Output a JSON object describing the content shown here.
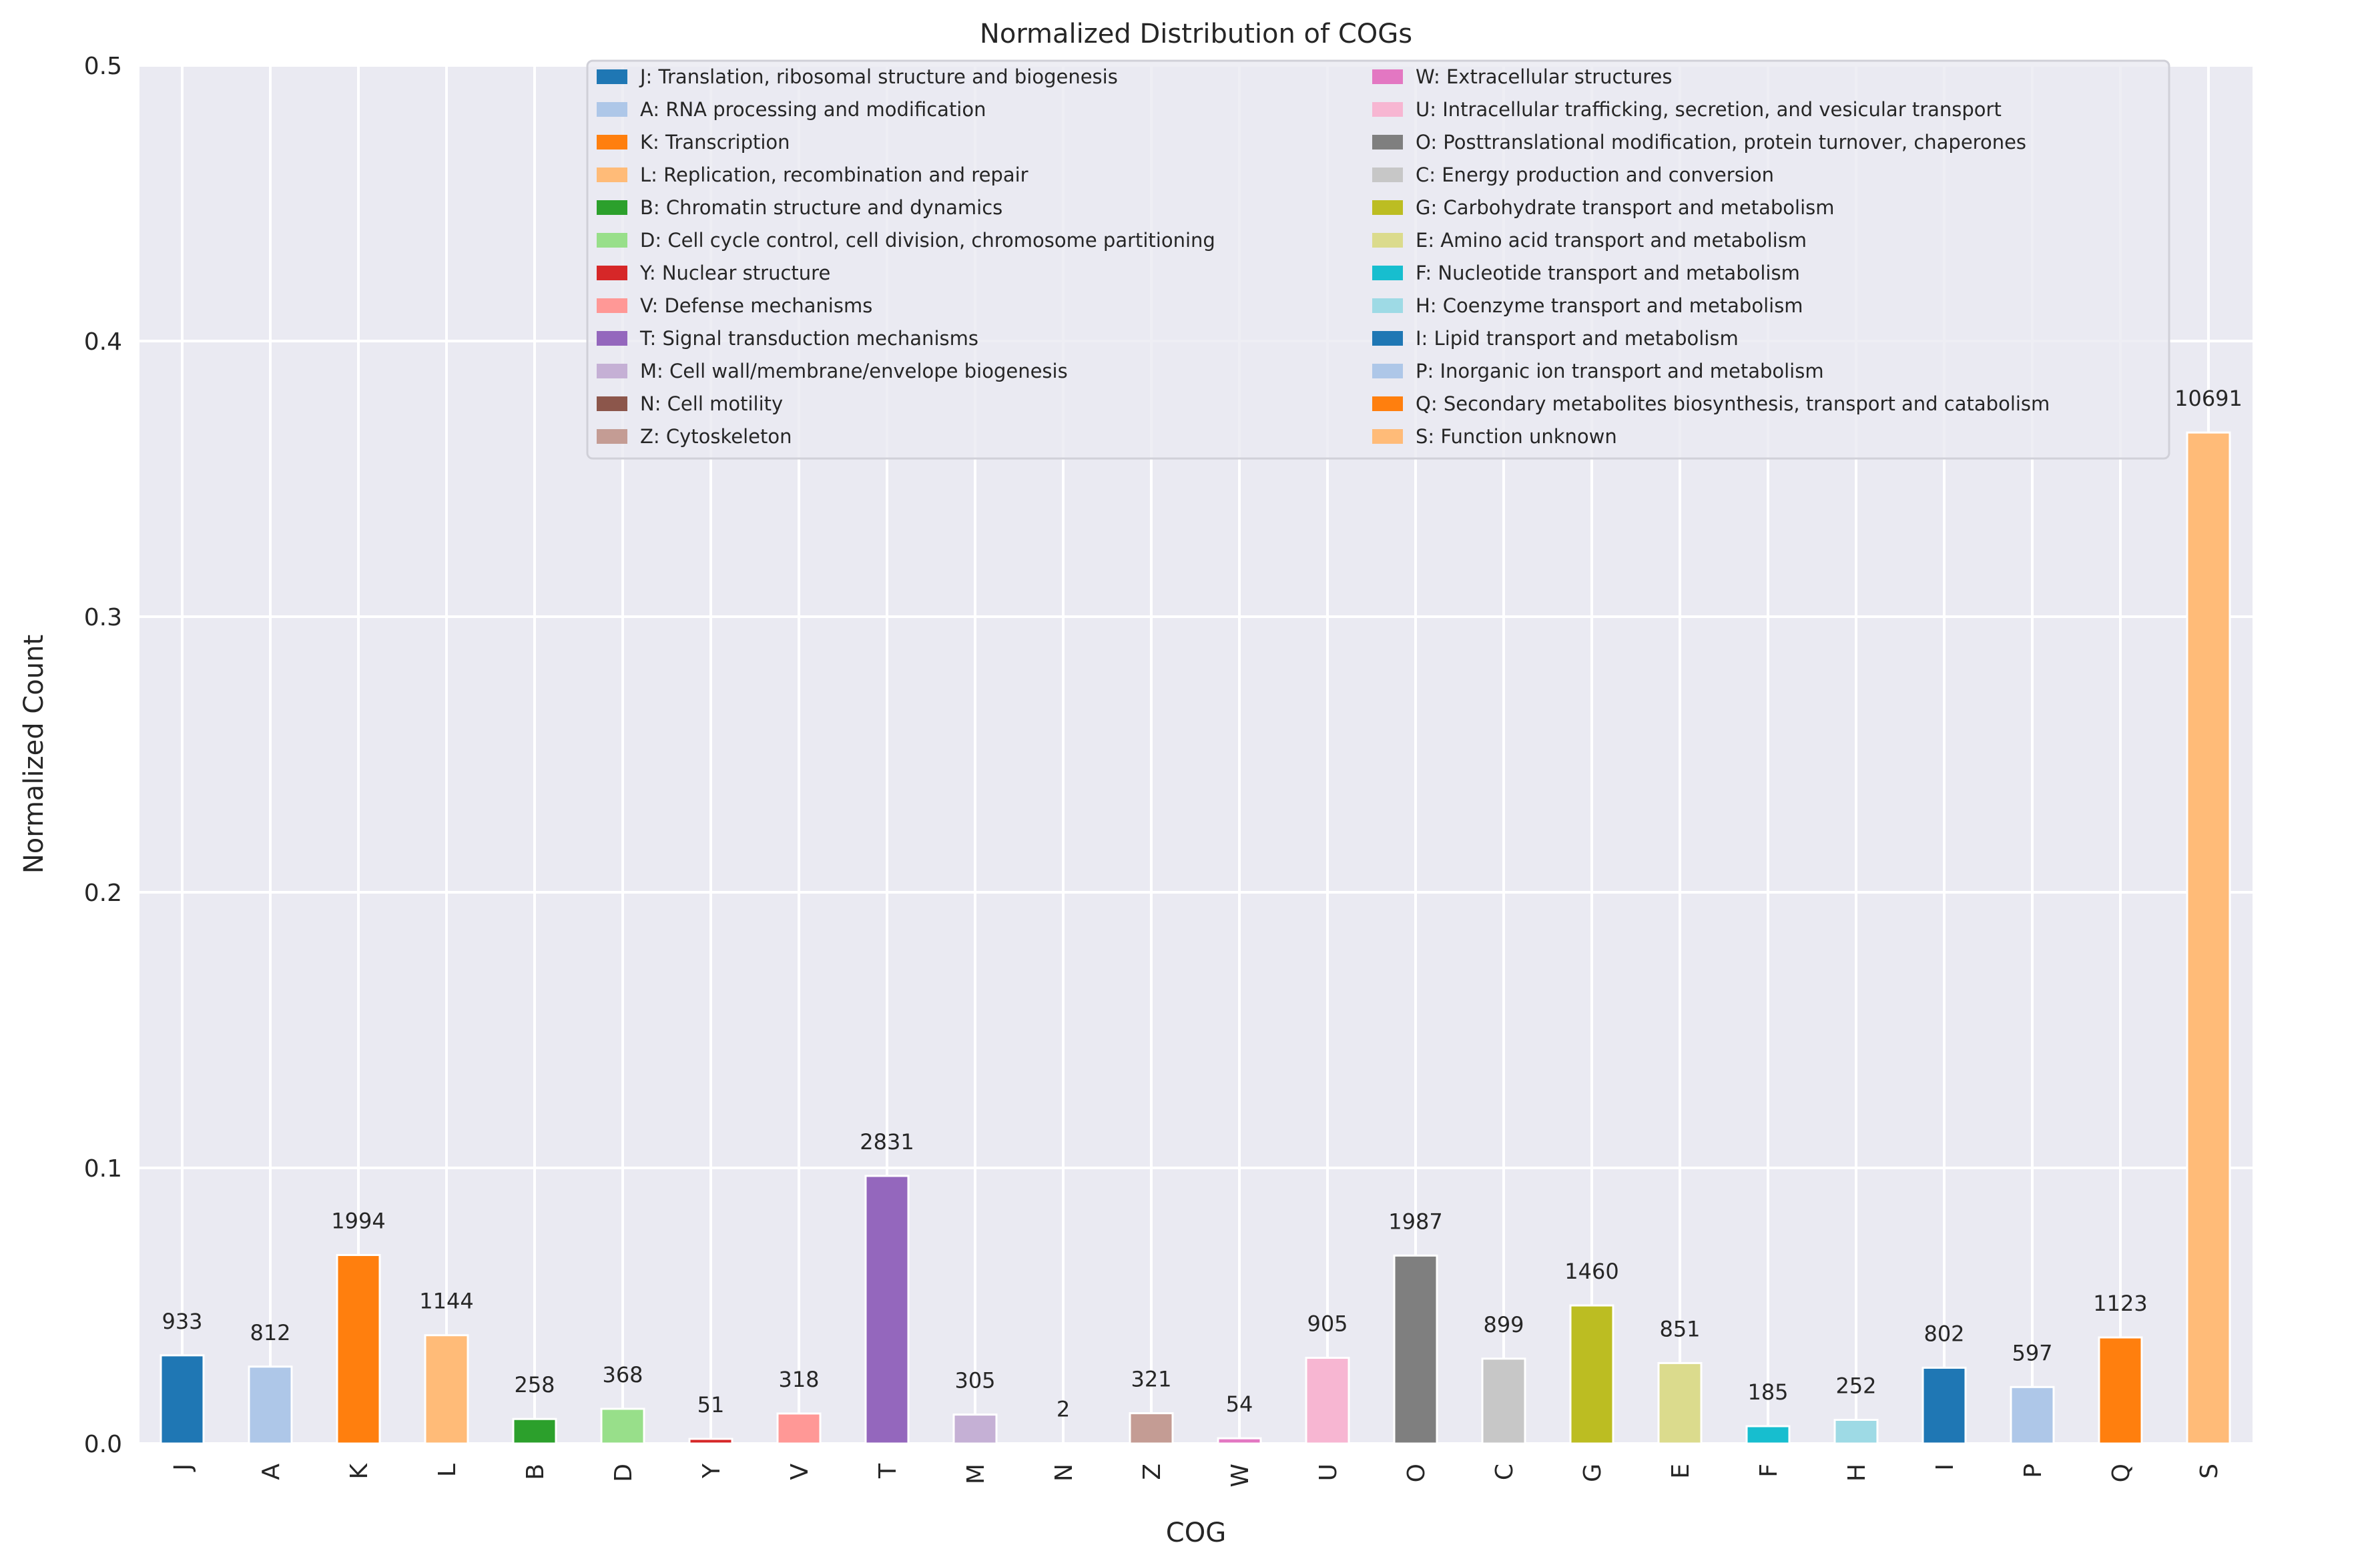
{
  "chart_data": {
    "type": "bar",
    "title": "Normalized Distribution of COGs",
    "xlabel": "COG",
    "ylabel": "Normalized Count",
    "ylim": [
      0,
      0.5
    ],
    "yticks": [
      "0.0",
      "0.1",
      "0.2",
      "0.3",
      "0.4",
      "0.5"
    ],
    "grid": true,
    "legend_placement": "top-right",
    "categories": [
      "J",
      "A",
      "K",
      "L",
      "B",
      "D",
      "Y",
      "V",
      "T",
      "M",
      "N",
      "Z",
      "W",
      "U",
      "O",
      "C",
      "G",
      "E",
      "F",
      "H",
      "I",
      "P",
      "Q",
      "S"
    ],
    "counts": [
      933,
      812,
      1994,
      1144,
      258,
      368,
      51,
      318,
      2831,
      305,
      2,
      321,
      54,
      905,
      1987,
      899,
      1460,
      851,
      185,
      252,
      802,
      597,
      1123,
      10691
    ],
    "values": [
      0.032,
      0.0279,
      0.0684,
      0.0393,
      0.0089,
      0.0126,
      0.0017,
      0.0109,
      0.0971,
      0.0105,
      0.0001,
      0.011,
      0.0019,
      0.0311,
      0.0682,
      0.0308,
      0.0501,
      0.0292,
      0.0063,
      0.0086,
      0.0275,
      0.0205,
      0.0385,
      0.3668
    ],
    "colors": [
      "#1f77b4",
      "#aec7e8",
      "#ff7f0e",
      "#ffbb78",
      "#2ca02c",
      "#98df8a",
      "#d62728",
      "#ff9896",
      "#9467bd",
      "#c5b0d5",
      "#8c564b",
      "#c49c94",
      "#e377c2",
      "#f7b6d2",
      "#7f7f7f",
      "#c7c7c7",
      "#bcbd22",
      "#dbdb8d",
      "#17becf",
      "#9edae5",
      "#1f77b4",
      "#aec7e8",
      "#ff7f0e",
      "#ffbb78"
    ],
    "legend": [
      "J: Translation, ribosomal structure and biogenesis",
      "A: RNA processing and modification",
      "K: Transcription",
      "L: Replication, recombination and repair",
      "B: Chromatin structure and dynamics",
      "D: Cell cycle control, cell division, chromosome partitioning",
      "Y: Nuclear structure",
      "V: Defense mechanisms",
      "T: Signal transduction mechanisms",
      "M: Cell wall/membrane/envelope biogenesis",
      "N: Cell motility",
      "Z: Cytoskeleton",
      "W: Extracellular structures",
      "U: Intracellular trafficking, secretion, and vesicular transport",
      "O: Posttranslational modification, protein turnover, chaperones",
      "C: Energy production and conversion",
      "G: Carbohydrate transport and metabolism",
      "E: Amino acid transport and metabolism",
      "F: Nucleotide transport and metabolism",
      "H: Coenzyme transport and metabolism",
      "I: Lipid transport and metabolism",
      "P: Inorganic ion transport and metabolism",
      "Q: Secondary metabolites biosynthesis, transport and catabolism",
      "S: Function unknown"
    ]
  }
}
